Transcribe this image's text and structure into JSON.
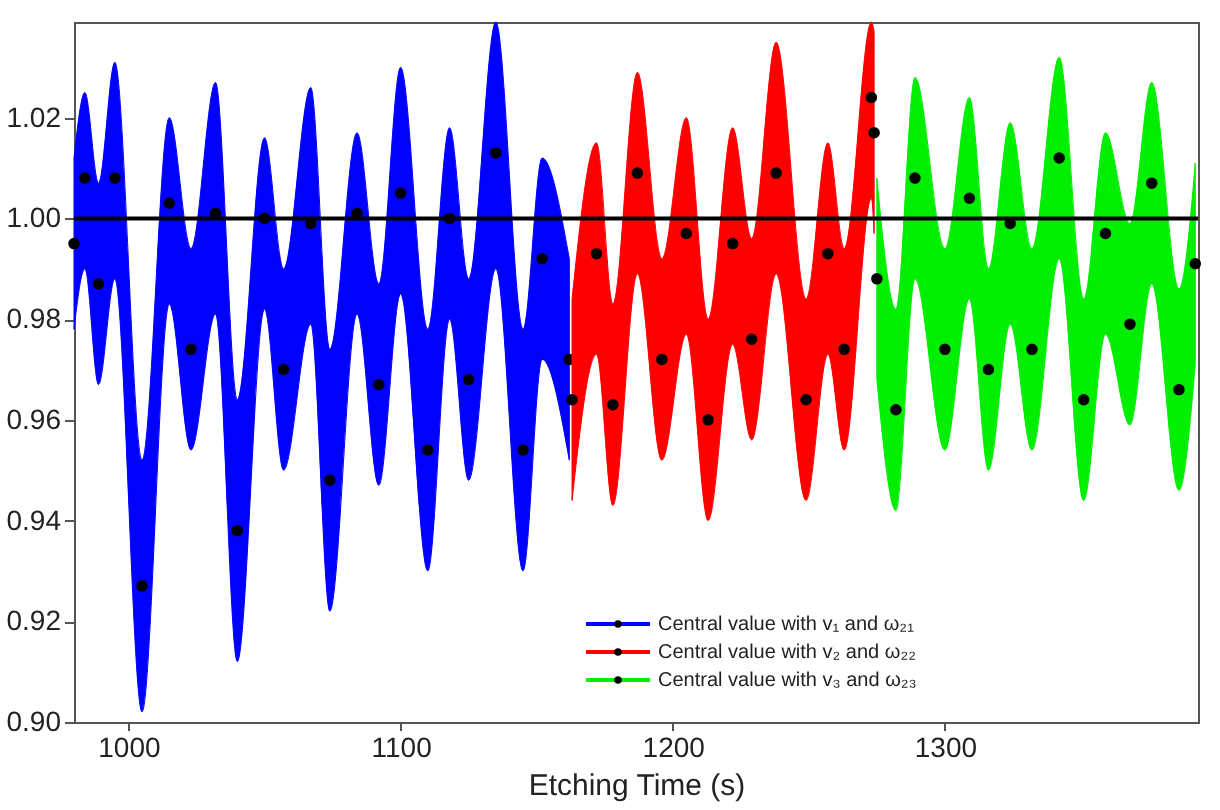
{
  "chart_data": {
    "type": "scatter",
    "xlabel": "Etching Time (s)",
    "xlim": [
      980,
      1393
    ],
    "xticks": [
      1000,
      1100,
      1200,
      1300
    ],
    "ylim": [
      0.9,
      1.039
    ],
    "yticks": [
      {
        "value": 0.9,
        "label": "0.90"
      },
      {
        "value": 0.92,
        "label": "0.92"
      },
      {
        "value": 0.94,
        "label": "0.94"
      },
      {
        "value": 0.96,
        "label": "0.96"
      },
      {
        "value": 0.98,
        "label": "0.98"
      },
      {
        "value": 1.0,
        "label": "1.00"
      },
      {
        "value": 1.02,
        "label": "1.02"
      }
    ],
    "marker": "circle",
    "legend": "bottom right",
    "grid": false,
    "ref_lines": [
      {
        "axis": "y",
        "value": 1.0,
        "color": "#000000"
      }
    ],
    "series": [
      {
        "name": "Central value with v₁ and ω₂₁",
        "color": "#0000ff",
        "colors": [
          "#000000",
          "#000000",
          "#000000",
          "#000000",
          "#000000",
          "#000000",
          "#000000",
          "#000000",
          "#000000",
          "#000000",
          "#000000",
          "#000000",
          "#000000",
          "#000000",
          "#000000",
          "#000000",
          "#000000",
          "#000000",
          "#000000",
          "#000000",
          "#000000",
          "#000000",
          "#000000"
        ],
        "x": [
          980,
          984,
          989,
          995,
          1005,
          1015,
          1023,
          1032,
          1040,
          1050,
          1057,
          1067,
          1074,
          1084,
          1092,
          1100,
          1110,
          1118,
          1125,
          1135,
          1145,
          1152,
          1162
        ],
        "values": [
          0.995,
          1.008,
          0.987,
          1.008,
          0.927,
          1.003,
          0.974,
          1.001,
          0.938,
          1.0,
          0.97,
          0.999,
          0.948,
          1.001,
          0.967,
          1.005,
          0.954,
          1.0,
          0.968,
          1.013,
          0.954,
          0.992,
          0.972
        ],
        "lower": [
          0.978,
          0.99,
          0.967,
          0.988,
          0.902,
          0.983,
          0.954,
          0.981,
          0.912,
          0.982,
          0.95,
          0.979,
          0.922,
          0.981,
          0.947,
          0.985,
          0.93,
          0.98,
          0.948,
          0.99,
          0.93,
          0.972,
          0.952
        ],
        "upper": [
          1.012,
          1.025,
          1.007,
          1.031,
          0.952,
          1.02,
          0.994,
          1.027,
          0.964,
          1.016,
          0.99,
          1.026,
          0.974,
          1.017,
          0.987,
          1.03,
          0.978,
          1.018,
          0.988,
          1.039,
          0.978,
          1.012,
          0.992
        ]
      },
      {
        "name": "Central value with v₂ and ω₂₂",
        "color": "#ff0000",
        "colors": [
          "#000000",
          "#000000",
          "#000000",
          "#000000",
          "#000000",
          "#000000",
          "#000000",
          "#000000",
          "#000000",
          "#000000",
          "#000000",
          "#000000",
          "#000000",
          "#000000",
          "#000000"
        ],
        "x": [
          1163,
          1172,
          1178,
          1187,
          1196,
          1205,
          1213,
          1222,
          1229,
          1238,
          1249,
          1257,
          1263,
          1273,
          1274
        ],
        "values": [
          0.964,
          0.993,
          0.963,
          1.009,
          0.972,
          0.997,
          0.96,
          0.995,
          0.976,
          1.009,
          0.964,
          0.993,
          0.974,
          1.024,
          1.017
        ],
        "lower": [
          0.944,
          0.973,
          0.943,
          0.989,
          0.952,
          0.977,
          0.94,
          0.975,
          0.956,
          0.989,
          0.944,
          0.973,
          0.954,
          1.004,
          0.997
        ],
        "upper": [
          0.984,
          1.015,
          0.983,
          1.029,
          0.992,
          1.02,
          0.98,
          1.018,
          0.996,
          1.035,
          0.984,
          1.015,
          0.994,
          1.039,
          1.037
        ]
      },
      {
        "name": "Central value with v₃ and ω₂₃",
        "color": "#00ee00",
        "colors": [
          "#000000",
          "#000000",
          "#000000",
          "#000000",
          "#000000",
          "#000000",
          "#000000",
          "#000000",
          "#000000",
          "#000000",
          "#000000",
          "#000000",
          "#000000",
          "#000000",
          "#000000"
        ],
        "x": [
          1275,
          1282,
          1289,
          1300,
          1309,
          1316,
          1324,
          1332,
          1342,
          1351,
          1359,
          1368,
          1376,
          1386,
          1392
        ],
        "values": [
          0.988,
          0.962,
          1.008,
          0.974,
          1.004,
          0.97,
          0.999,
          0.974,
          1.012,
          0.964,
          0.997,
          0.979,
          1.007,
          0.966,
          0.991
        ],
        "lower": [
          0.968,
          0.942,
          0.988,
          0.954,
          0.984,
          0.95,
          0.979,
          0.954,
          0.992,
          0.944,
          0.977,
          0.959,
          0.987,
          0.946,
          0.971
        ],
        "upper": [
          1.008,
          0.982,
          1.028,
          0.994,
          1.024,
          0.99,
          1.019,
          0.994,
          1.032,
          0.984,
          1.017,
          0.999,
          1.027,
          0.986,
          1.011
        ]
      }
    ]
  }
}
